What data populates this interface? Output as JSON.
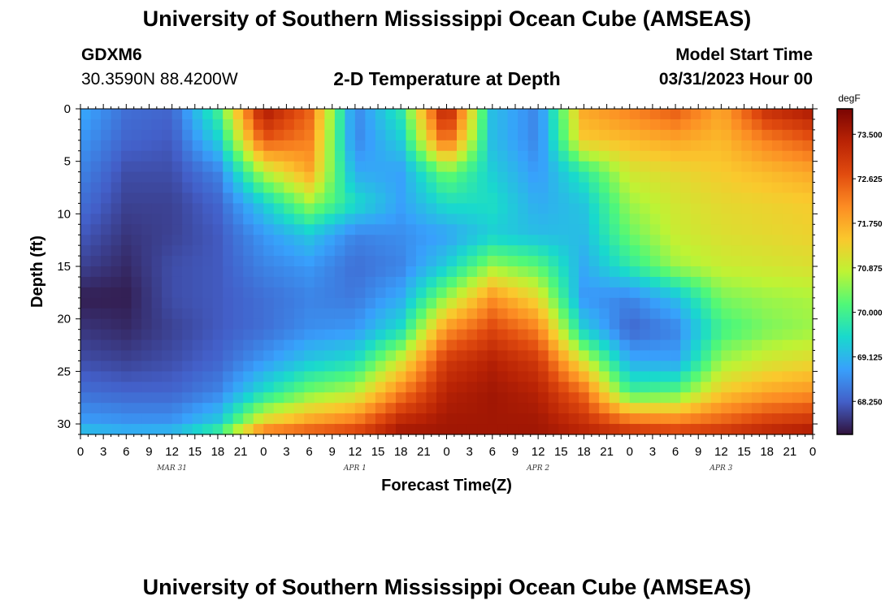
{
  "header": {
    "title": "University of Southern Mississippi Ocean Cube (AMSEAS)",
    "station": "GDXM6",
    "coords": "30.3590N  88.4200W",
    "subtitle": "2-D Temperature at Depth",
    "model_start_label": "Model Start Time",
    "model_start_date": "03/31/2023 Hour 00"
  },
  "footer": {
    "title": "University of Southern Mississippi Ocean Cube (AMSEAS)"
  },
  "chart_data": {
    "type": "heatmap",
    "title": "2-D Temperature at Depth",
    "xlabel": "Forecast Time(Z)",
    "ylabel": "Depth (ft)",
    "x_unit": "hours from 03/31/2023 00Z",
    "x_range": [
      0,
      96
    ],
    "y_range": [
      0,
      31
    ],
    "x_ticks": [
      0,
      3,
      6,
      9,
      12,
      15,
      18,
      21,
      24,
      27,
      30,
      33,
      36,
      39,
      42,
      45,
      48,
      51,
      54,
      57,
      60,
      63,
      66,
      69,
      72,
      75,
      78,
      81,
      84,
      87,
      90,
      93,
      96
    ],
    "x_tick_labels": [
      "0",
      "3",
      "6",
      "9",
      "12",
      "15",
      "18",
      "21",
      "0",
      "3",
      "6",
      "9",
      "12",
      "15",
      "18",
      "21",
      "0",
      "3",
      "6",
      "9",
      "12",
      "15",
      "18",
      "21",
      "0",
      "3",
      "6",
      "9",
      "12",
      "15",
      "18",
      "21",
      "0"
    ],
    "y_ticks": [
      0,
      5,
      10,
      15,
      20,
      25,
      30
    ],
    "y_tick_labels": [
      "0",
      "5",
      "10",
      "15",
      "20",
      "25",
      "30"
    ],
    "day_labels": [
      {
        "text": "MAR 31",
        "hour": 12
      },
      {
        "text": "APR 1",
        "hour": 36
      },
      {
        "text": "APR 2",
        "hour": 60
      },
      {
        "text": "APR 3",
        "hour": 84
      }
    ],
    "colorbar": {
      "unit": "degF",
      "min": 67.6,
      "max": 74.0,
      "tick_values": [
        68.25,
        69.125,
        70.0,
        70.875,
        71.75,
        72.625,
        73.5
      ],
      "tick_labels": [
        "68.250",
        "69.125",
        "70.000",
        "70.875",
        "71.750",
        "72.625",
        "73.500"
      ]
    },
    "grid_times": [
      0,
      6,
      12,
      18,
      24,
      30,
      36,
      42,
      48,
      54,
      60,
      66,
      72,
      78,
      84,
      90,
      96
    ],
    "grid_depths": [
      0,
      3,
      6,
      9,
      12,
      15,
      18,
      21,
      24,
      27,
      30,
      31
    ],
    "values": [
      [
        69.0,
        68.4,
        68.3,
        70.0,
        73.6,
        72.5,
        68.6,
        69.8,
        73.6,
        69.2,
        68.6,
        71.8,
        72.2,
        72.6,
        71.8,
        73.2,
        73.6
      ],
      [
        68.8,
        68.3,
        68.2,
        69.4,
        72.6,
        72.2,
        68.6,
        69.4,
        72.6,
        69.2,
        68.6,
        71.4,
        71.6,
        71.8,
        71.6,
        72.2,
        72.6
      ],
      [
        68.6,
        68.1,
        68.1,
        68.6,
        70.8,
        71.8,
        69.0,
        68.9,
        70.4,
        69.4,
        68.8,
        69.8,
        71.0,
        71.2,
        71.4,
        71.6,
        71.8
      ],
      [
        68.4,
        68.0,
        68.0,
        68.3,
        69.4,
        70.6,
        69.6,
        68.9,
        69.6,
        69.6,
        69.0,
        69.3,
        70.6,
        71.0,
        71.2,
        71.3,
        71.4
      ],
      [
        68.2,
        67.9,
        68.0,
        68.2,
        68.8,
        69.3,
        68.6,
        68.7,
        68.9,
        69.4,
        69.2,
        69.2,
        70.3,
        70.9,
        71.1,
        71.2,
        71.3
      ],
      [
        68.0,
        67.8,
        68.1,
        68.2,
        68.6,
        68.8,
        68.4,
        68.6,
        69.4,
        70.6,
        70.2,
        69.0,
        69.8,
        70.6,
        70.9,
        71.0,
        71.1
      ],
      [
        67.7,
        67.7,
        68.1,
        68.2,
        68.4,
        68.6,
        68.5,
        69.0,
        70.6,
        72.0,
        71.2,
        68.8,
        68.6,
        69.2,
        70.4,
        70.6,
        70.7
      ],
      [
        67.9,
        67.8,
        68.0,
        68.2,
        68.4,
        68.7,
        68.8,
        69.6,
        72.0,
        72.8,
        72.2,
        69.4,
        68.3,
        68.6,
        70.0,
        70.4,
        70.6
      ],
      [
        68.1,
        68.0,
        68.1,
        68.3,
        68.8,
        69.3,
        69.6,
        71.0,
        73.0,
        73.4,
        73.0,
        71.0,
        69.0,
        68.9,
        70.6,
        71.0,
        71.2
      ],
      [
        68.4,
        68.3,
        68.3,
        68.6,
        69.6,
        70.4,
        70.8,
        72.2,
        73.4,
        73.6,
        73.4,
        72.4,
        70.0,
        70.2,
        71.4,
        71.8,
        72.0
      ],
      [
        68.9,
        68.8,
        68.8,
        69.4,
        71.4,
        72.0,
        72.4,
        73.4,
        73.6,
        73.6,
        73.6,
        73.2,
        72.6,
        72.4,
        72.6,
        73.0,
        73.2
      ],
      [
        69.4,
        69.2,
        69.3,
        70.2,
        72.6,
        72.8,
        73.0,
        73.6,
        73.6,
        73.6,
        73.6,
        73.4,
        73.2,
        73.0,
        73.2,
        73.4,
        73.6
      ]
    ]
  }
}
